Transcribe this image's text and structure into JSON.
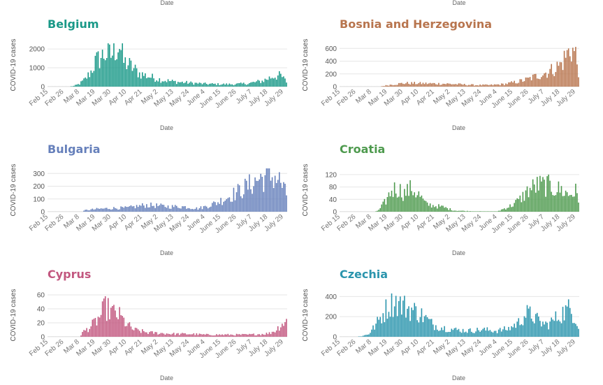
{
  "top_xlabel": "Date",
  "chart_data": [
    {
      "type": "bar",
      "title": "Belgium",
      "color": "#1a9988",
      "xlabel": "Date",
      "ylabel": "COVID-19 cases",
      "ylim": [
        0,
        2300
      ],
      "yticks": [
        0,
        1000,
        2000
      ],
      "xticks": [
        "Feb 15",
        "Feb 26",
        "Mar 8",
        "Mar 19",
        "Mar 30",
        "Apr 10",
        "Apr 21",
        "May 2",
        "May 13",
        "May 24",
        "June 4",
        "June 15",
        "June 26",
        "July 7",
        "July 18",
        "July 29"
      ],
      "keyframes": [
        [
          0,
          0
        ],
        [
          15,
          0
        ],
        [
          18,
          40
        ],
        [
          22,
          150
        ],
        [
          26,
          400
        ],
        [
          30,
          800
        ],
        [
          33,
          1300
        ],
        [
          36,
          1500
        ],
        [
          40,
          1750
        ],
        [
          44,
          1650
        ],
        [
          48,
          2100
        ],
        [
          50,
          2250
        ],
        [
          53,
          1300
        ],
        [
          56,
          1200
        ],
        [
          60,
          950
        ],
        [
          64,
          700
        ],
        [
          70,
          550
        ],
        [
          80,
          350
        ],
        [
          90,
          250
        ],
        [
          100,
          200
        ],
        [
          110,
          150
        ],
        [
          120,
          130
        ],
        [
          130,
          130
        ],
        [
          140,
          170
        ],
        [
          150,
          300
        ],
        [
          158,
          560
        ],
        [
          163,
          580
        ],
        [
          167,
          260
        ]
      ]
    },
    {
      "type": "bar",
      "title": "Bosnia and Herzegovina",
      "color": "#b8754e",
      "xlabel": "Date",
      "ylabel": "COVID-19 cases",
      "ylim": [
        0,
        680
      ],
      "yticks": [
        0,
        200,
        400,
        600
      ],
      "xticks": [
        "Feb 15",
        "Feb 26",
        "Mar 8",
        "Mar 19",
        "Mar 30",
        "Apr 10",
        "Apr 21",
        "May 2",
        "May 13",
        "May 24",
        "June 4",
        "June 15",
        "June 26",
        "July 7",
        "July 18",
        "July 29"
      ],
      "keyframes": [
        [
          0,
          0
        ],
        [
          28,
          0
        ],
        [
          30,
          10
        ],
        [
          35,
          30
        ],
        [
          45,
          55
        ],
        [
          60,
          50
        ],
        [
          75,
          45
        ],
        [
          85,
          35
        ],
        [
          95,
          25
        ],
        [
          105,
          25
        ],
        [
          115,
          40
        ],
        [
          125,
          80
        ],
        [
          132,
          120
        ],
        [
          138,
          170
        ],
        [
          145,
          230
        ],
        [
          150,
          280
        ],
        [
          155,
          360
        ],
        [
          158,
          480
        ],
        [
          162,
          600
        ],
        [
          165,
          500
        ],
        [
          167,
          250
        ]
      ]
    },
    {
      "type": "bar",
      "title": "Bulgaria",
      "color": "#6680bb",
      "xlabel": "Date",
      "ylabel": "COVID-19 cases",
      "ylim": [
        0,
        340
      ],
      "yticks": [
        0,
        100,
        200,
        300
      ],
      "xticks": [
        "Feb 15",
        "Feb 26",
        "Mar 8",
        "Mar 19",
        "Mar 30",
        "Apr 10",
        "Apr 21",
        "May 2",
        "May 13",
        "May 24",
        "June 4",
        "June 15",
        "June 26",
        "July 7",
        "July 18",
        "July 29"
      ],
      "keyframes": [
        [
          0,
          0
        ],
        [
          24,
          0
        ],
        [
          26,
          12
        ],
        [
          35,
          22
        ],
        [
          45,
          28
        ],
        [
          55,
          30
        ],
        [
          68,
          52
        ],
        [
          75,
          48
        ],
        [
          85,
          40
        ],
        [
          95,
          40
        ],
        [
          105,
          25
        ],
        [
          110,
          40
        ],
        [
          118,
          70
        ],
        [
          125,
          110
        ],
        [
          132,
          150
        ],
        [
          140,
          200
        ],
        [
          148,
          260
        ],
        [
          155,
          280
        ],
        [
          160,
          270
        ],
        [
          163,
          230
        ],
        [
          167,
          130
        ]
      ]
    },
    {
      "type": "bar",
      "title": "Croatia",
      "color": "#4e9a4e",
      "xlabel": "Date",
      "ylabel": "COVID-19 cases",
      "ylim": [
        0,
        140
      ],
      "yticks": [
        0,
        40,
        80,
        120
      ],
      "xticks": [
        "Feb 15",
        "Feb 26",
        "Mar 8",
        "Mar 19",
        "Mar 30",
        "Apr 10",
        "Apr 21",
        "May 2",
        "May 13",
        "May 24",
        "June 4",
        "June 15",
        "June 26",
        "July 7",
        "July 18",
        "July 29"
      ],
      "keyframes": [
        [
          0,
          0
        ],
        [
          24,
          0
        ],
        [
          27,
          5
        ],
        [
          32,
          35
        ],
        [
          36,
          70
        ],
        [
          40,
          75
        ],
        [
          45,
          60
        ],
        [
          50,
          75
        ],
        [
          55,
          55
        ],
        [
          60,
          25
        ],
        [
          65,
          20
        ],
        [
          72,
          15
        ],
        [
          80,
          4
        ],
        [
          90,
          2
        ],
        [
          100,
          1
        ],
        [
          110,
          1
        ],
        [
          120,
          20
        ],
        [
          126,
          40
        ],
        [
          132,
          70
        ],
        [
          138,
          85
        ],
        [
          145,
          85
        ],
        [
          150,
          75
        ],
        [
          155,
          70
        ],
        [
          160,
          55
        ],
        [
          165,
          65
        ],
        [
          167,
          35
        ]
      ]
    },
    {
      "type": "bar",
      "title": "Cyprus",
      "color": "#c2577f",
      "xlabel": "Date",
      "ylabel": "COVID-19 cases",
      "ylim": [
        0,
        62
      ],
      "yticks": [
        0,
        20,
        40,
        60
      ],
      "xticks": [
        "Feb 15",
        "Feb 26",
        "Mar 8",
        "Mar 19",
        "Mar 30",
        "Apr 10",
        "Apr 21",
        "May 2",
        "May 13",
        "May 24",
        "June 4",
        "June 15",
        "June 26",
        "July 7",
        "July 18",
        "July 29"
      ],
      "keyframes": [
        [
          0,
          0
        ],
        [
          22,
          0
        ],
        [
          24,
          6
        ],
        [
          30,
          15
        ],
        [
          35,
          25
        ],
        [
          40,
          42
        ],
        [
          45,
          35
        ],
        [
          50,
          30
        ],
        [
          55,
          18
        ],
        [
          60,
          10
        ],
        [
          65,
          8
        ],
        [
          70,
          6
        ],
        [
          80,
          5
        ],
        [
          90,
          4
        ],
        [
          100,
          4
        ],
        [
          110,
          3
        ],
        [
          120,
          3
        ],
        [
          130,
          3
        ],
        [
          140,
          3
        ],
        [
          150,
          4
        ],
        [
          155,
          5
        ],
        [
          160,
          10
        ],
        [
          163,
          18
        ],
        [
          167,
          22
        ]
      ]
    },
    {
      "type": "bar",
      "title": "Czechia",
      "color": "#2b95ad",
      "xlabel": "Date",
      "ylabel": "COVID-19 cases",
      "ylim": [
        0,
        430
      ],
      "yticks": [
        0,
        200,
        400
      ],
      "xticks": [
        "Feb 15",
        "Feb 26",
        "Mar 8",
        "Mar 19",
        "Mar 30",
        "Apr 10",
        "Apr 21",
        "May 2",
        "May 13",
        "May 24",
        "June 4",
        "June 15",
        "June 26",
        "July 7",
        "July 18",
        "July 29"
      ],
      "keyframes": [
        [
          0,
          0
        ],
        [
          12,
          0
        ],
        [
          15,
          5
        ],
        [
          20,
          30
        ],
        [
          25,
          120
        ],
        [
          30,
          230
        ],
        [
          35,
          330
        ],
        [
          38,
          360
        ],
        [
          42,
          320
        ],
        [
          48,
          280
        ],
        [
          55,
          240
        ],
        [
          60,
          180
        ],
        [
          65,
          120
        ],
        [
          72,
          90
        ],
        [
          80,
          70
        ],
        [
          90,
          60
        ],
        [
          100,
          70
        ],
        [
          110,
          60
        ],
        [
          118,
          80
        ],
        [
          125,
          140
        ],
        [
          130,
          230
        ],
        [
          135,
          210
        ],
        [
          140,
          140
        ],
        [
          145,
          120
        ],
        [
          150,
          170
        ],
        [
          155,
          230
        ],
        [
          160,
          270
        ],
        [
          163,
          240
        ],
        [
          167,
          120
        ]
      ]
    }
  ]
}
